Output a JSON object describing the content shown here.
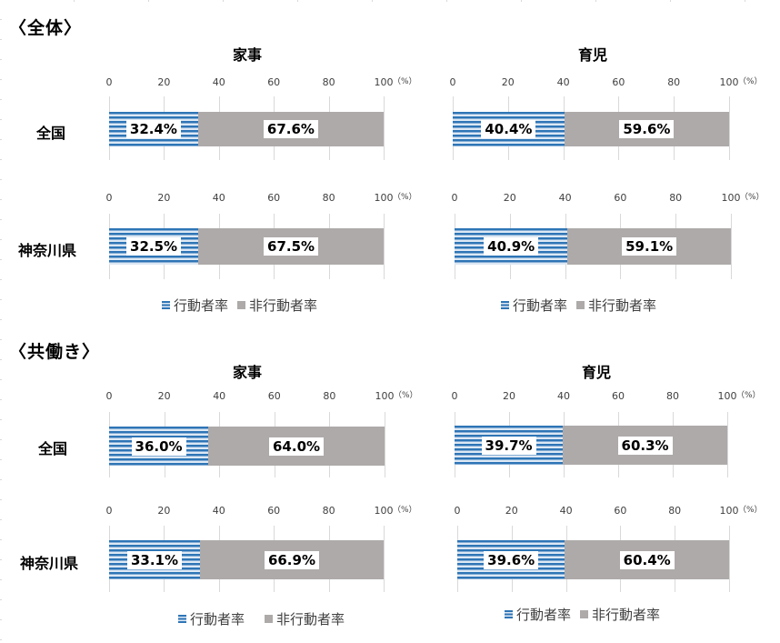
{
  "sections": [
    {
      "title": "〈全体〉"
    },
    {
      "title": "〈共働き〉"
    }
  ],
  "panels": {
    "housework": "家事",
    "childcare": "育児"
  },
  "axis": {
    "ticks": [
      "0",
      "20",
      "40",
      "60",
      "80",
      "100"
    ],
    "unit": "（%）"
  },
  "rows": {
    "national": "全国",
    "kanagawa": "神奈川県"
  },
  "legend": {
    "active": "行動者率",
    "inactive": "非行動者率"
  },
  "colors": {
    "active_stripe_dark": "#2e75b6",
    "active_stripe_light": "#dde8f4",
    "inactive": "#aeaaaa"
  },
  "charts": {
    "all_housework_national": {
      "active": "32.4%",
      "inactive": "67.6%"
    },
    "all_childcare_national": {
      "active": "40.4%",
      "inactive": "59.6%"
    },
    "all_housework_kanagawa": {
      "active": "32.5%",
      "inactive": "67.5%"
    },
    "all_childcare_kanagawa": {
      "active": "40.9%",
      "inactive": "59.1%"
    },
    "dual_housework_national": {
      "active": "36.0%",
      "inactive": "64.0%"
    },
    "dual_childcare_national": {
      "active": "39.7%",
      "inactive": "60.3%"
    },
    "dual_housework_kanagawa": {
      "active": "33.1%",
      "inactive": "66.9%"
    },
    "dual_childcare_kanagawa": {
      "active": "39.6%",
      "inactive": "60.4%"
    }
  },
  "chart_data": [
    {
      "type": "bar",
      "orientation": "horizontal",
      "stacked": true,
      "title": "〈全体〉 家事 全国",
      "categories": [
        "全国"
      ],
      "series": [
        {
          "name": "行動者率",
          "values": [
            32.4
          ]
        },
        {
          "name": "非行動者率",
          "values": [
            67.6
          ]
        }
      ],
      "xlim": [
        0,
        100
      ],
      "xlabel": "（%）"
    },
    {
      "type": "bar",
      "orientation": "horizontal",
      "stacked": true,
      "title": "〈全体〉 育児 全国",
      "categories": [
        "全国"
      ],
      "series": [
        {
          "name": "行動者率",
          "values": [
            40.4
          ]
        },
        {
          "name": "非行動者率",
          "values": [
            59.6
          ]
        }
      ],
      "xlim": [
        0,
        100
      ],
      "xlabel": "（%）"
    },
    {
      "type": "bar",
      "orientation": "horizontal",
      "stacked": true,
      "title": "〈全体〉 家事 神奈川県",
      "categories": [
        "神奈川県"
      ],
      "series": [
        {
          "name": "行動者率",
          "values": [
            32.5
          ]
        },
        {
          "name": "非行動者率",
          "values": [
            67.5
          ]
        }
      ],
      "xlim": [
        0,
        100
      ],
      "xlabel": "（%）"
    },
    {
      "type": "bar",
      "orientation": "horizontal",
      "stacked": true,
      "title": "〈全体〉 育児 神奈川県",
      "categories": [
        "神奈川県"
      ],
      "series": [
        {
          "name": "行動者率",
          "values": [
            40.9
          ]
        },
        {
          "name": "非行動者率",
          "values": [
            59.1
          ]
        }
      ],
      "xlim": [
        0,
        100
      ],
      "xlabel": "（%）"
    },
    {
      "type": "bar",
      "orientation": "horizontal",
      "stacked": true,
      "title": "〈共働き〉 家事 全国",
      "categories": [
        "全国"
      ],
      "series": [
        {
          "name": "行動者率",
          "values": [
            36.0
          ]
        },
        {
          "name": "非行動者率",
          "values": [
            64.0
          ]
        }
      ],
      "xlim": [
        0,
        100
      ],
      "xlabel": "（%）"
    },
    {
      "type": "bar",
      "orientation": "horizontal",
      "stacked": true,
      "title": "〈共働き〉 育児 全国",
      "categories": [
        "全国"
      ],
      "series": [
        {
          "name": "行動者率",
          "values": [
            39.7
          ]
        },
        {
          "name": "非行動者率",
          "values": [
            60.3
          ]
        }
      ],
      "xlim": [
        0,
        100
      ],
      "xlabel": "（%）"
    },
    {
      "type": "bar",
      "orientation": "horizontal",
      "stacked": true,
      "title": "〈共働き〉 家事 神奈川県",
      "categories": [
        "神奈川県"
      ],
      "series": [
        {
          "name": "行動者率",
          "values": [
            33.1
          ]
        },
        {
          "name": "非行動者率",
          "values": [
            66.9
          ]
        }
      ],
      "xlim": [
        0,
        100
      ],
      "xlabel": "（%）"
    },
    {
      "type": "bar",
      "orientation": "horizontal",
      "stacked": true,
      "title": "〈共働き〉 育児 神奈川県",
      "categories": [
        "神奈川県"
      ],
      "series": [
        {
          "name": "行動者率",
          "values": [
            39.6
          ]
        },
        {
          "name": "非行動者率",
          "values": [
            60.4
          ]
        }
      ],
      "xlim": [
        0,
        100
      ],
      "xlabel": "（%）"
    }
  ]
}
